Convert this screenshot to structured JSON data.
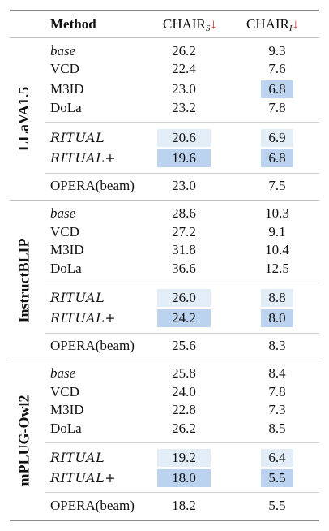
{
  "header": {
    "method": "Method",
    "chair_s": "CHAIR",
    "chair_s_sub": "S",
    "chair_i": "CHAIR",
    "chair_i_sub": "I",
    "arrow": "↓"
  },
  "groups": [
    {
      "name": "LLaVA1.5",
      "rows": [
        {
          "method": "base",
          "s": "26.2",
          "i": "9.3"
        },
        {
          "method": "VCD",
          "s": "22.4",
          "i": "7.6"
        },
        {
          "method": "M3ID",
          "s": "23.0",
          "i": "6.8"
        },
        {
          "method": "DoLa",
          "s": "23.2",
          "i": "7.8"
        },
        {
          "method": "RITUAL",
          "s": "20.6",
          "i": "6.9"
        },
        {
          "method": "RITUAL+",
          "s": "19.6",
          "i": "6.8"
        },
        {
          "method": "OPERA(beam)",
          "s": "23.0",
          "i": "7.5"
        }
      ]
    },
    {
      "name": "InstructBLIP",
      "rows": [
        {
          "method": "base",
          "s": "28.6",
          "i": "10.3"
        },
        {
          "method": "VCD",
          "s": "27.2",
          "i": "9.1"
        },
        {
          "method": "M3ID",
          "s": "31.8",
          "i": "10.4"
        },
        {
          "method": "DoLa",
          "s": "36.6",
          "i": "12.5"
        },
        {
          "method": "RITUAL",
          "s": "26.0",
          "i": "8.8"
        },
        {
          "method": "RITUAL+",
          "s": "24.2",
          "i": "8.0"
        },
        {
          "method": "OPERA(beam)",
          "s": "25.6",
          "i": "8.3"
        }
      ]
    },
    {
      "name": "mPLUG-Owl2",
      "rows": [
        {
          "method": "base",
          "s": "25.8",
          "i": "8.4"
        },
        {
          "method": "VCD",
          "s": "24.0",
          "i": "7.8"
        },
        {
          "method": "M3ID",
          "s": "22.8",
          "i": "7.3"
        },
        {
          "method": "DoLa",
          "s": "26.2",
          "i": "8.5"
        },
        {
          "method": "RITUAL",
          "s": "19.2",
          "i": "6.4"
        },
        {
          "method": "RITUAL+",
          "s": "18.0",
          "i": "5.5"
        },
        {
          "method": "OPERA(beam)",
          "s": "18.2",
          "i": "5.5"
        }
      ]
    }
  ],
  "highlight_colors": {
    "light": "#e3edf8",
    "strong": "#bcd3ef"
  }
}
